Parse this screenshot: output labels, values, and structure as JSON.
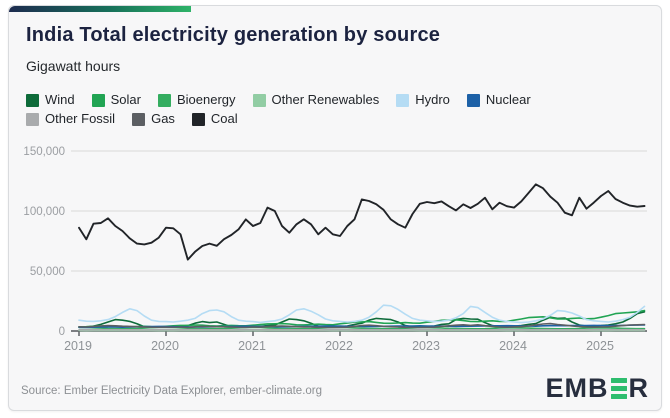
{
  "header": {
    "title": "India Total electricity generation by source",
    "subtitle": "Gigawatt hours"
  },
  "footer": {
    "source": "Source: Ember Electricity Data Explorer, ember-climate.org",
    "logo_left": "EMB",
    "logo_right": "R"
  },
  "colors": {
    "card_bg": "#f7f7f8",
    "accent_gradient_start": "#1d2b4f",
    "accent_gradient_end": "#2eb368",
    "grid": "#d8d8d8",
    "axis": "#53565a",
    "tick_text": "#9b9ea2",
    "year_text": "#8f9397",
    "title_text": "#1c2340",
    "logo_green": "#2ebd6e"
  },
  "chart_data": {
    "type": "line",
    "title": "India Total electricity generation by source",
    "ylabel": "Gigawatt hours",
    "x_interval": "monthly",
    "x_start": "2019-01",
    "x_end": "2025-07",
    "x_tick_labels": [
      "2019",
      "2020",
      "2021",
      "2022",
      "2023",
      "2024",
      "2025"
    ],
    "y_ticks": [
      0,
      50000,
      100000,
      150000
    ],
    "ylim": [
      0,
      160000
    ],
    "grid": true,
    "legend_position": "top",
    "series": [
      {
        "name": "Wind",
        "color": "#0e6b3a",
        "values": [
          3500,
          3200,
          4000,
          5500,
          7500,
          9500,
          9000,
          8000,
          6000,
          3500,
          3000,
          3200,
          3300,
          3500,
          4200,
          4500,
          6500,
          7800,
          7000,
          7500,
          5500,
          3500,
          3000,
          3100,
          3200,
          3800,
          4500,
          5000,
          7500,
          10000,
          9500,
          8500,
          6500,
          4000,
          3200,
          3300,
          3600,
          4200,
          5500,
          6500,
          9000,
          10500,
          10000,
          9500,
          7500,
          4500,
          3500,
          3600,
          3800,
          4200,
          5500,
          6000,
          9500,
          10500,
          10000,
          9800,
          7000,
          4500,
          3600,
          3800,
          4000,
          4500,
          5500,
          6200,
          9000,
          11500,
          10500,
          10800,
          7500,
          5000,
          4000,
          4200,
          4500,
          5000,
          6000,
          7500,
          10500,
          14500,
          16000
        ]
      },
      {
        "name": "Solar",
        "color": "#21a453",
        "values": [
          3300,
          3600,
          4000,
          4200,
          4300,
          4100,
          3600,
          3500,
          3700,
          3900,
          3600,
          3500,
          3900,
          4300,
          4700,
          4700,
          5000,
          4800,
          4300,
          4200,
          4400,
          4700,
          4400,
          4300,
          4800,
          5300,
          5900,
          6000,
          6200,
          5800,
          5200,
          5100,
          5400,
          5700,
          5300,
          5200,
          6000,
          6600,
          7400,
          7600,
          7800,
          7200,
          6500,
          6400,
          6700,
          7000,
          6600,
          6500,
          7300,
          8000,
          8900,
          9100,
          9300,
          8700,
          7900,
          7800,
          8200,
          8500,
          8000,
          8000,
          9000,
          10000,
          11200,
          11500,
          11800,
          11000,
          10000,
          10000,
          10500,
          10800,
          10200,
          10300,
          11500,
          12800,
          14500,
          15000,
          15500,
          16000,
          17000
        ]
      },
      {
        "name": "Bioenergy",
        "color": "#34ad60",
        "values": [
          3000,
          2900,
          2700,
          2400,
          2200,
          2100,
          2000,
          2000,
          2100,
          2400,
          2800,
          3100,
          3100,
          3000,
          2700,
          2300,
          2100,
          2000,
          1900,
          1900,
          2000,
          2300,
          2700,
          3000,
          3000,
          2900,
          2600,
          2300,
          2100,
          2000,
          1900,
          1900,
          2000,
          2300,
          2700,
          2900,
          2900,
          2800,
          2600,
          2300,
          2100,
          2000,
          1900,
          1900,
          2000,
          2300,
          2600,
          2800,
          2800,
          2700,
          2500,
          2200,
          2000,
          1900,
          1900,
          1800,
          1900,
          2200,
          2500,
          2700,
          2700,
          2600,
          2400,
          2200,
          2000,
          1900,
          1800,
          1800,
          1900,
          2100,
          2400,
          2600,
          2600,
          2500,
          2400,
          2200,
          2000,
          1900,
          1900
        ]
      },
      {
        "name": "Other Renewables",
        "color": "#92cda4",
        "values": [
          380,
          370,
          390,
          400,
          420,
          430,
          420,
          410,
          400,
          390,
          380,
          370,
          380,
          370,
          390,
          400,
          420,
          430,
          420,
          410,
          400,
          390,
          380,
          370,
          380,
          370,
          390,
          400,
          420,
          430,
          420,
          410,
          400,
          390,
          380,
          370,
          380,
          370,
          390,
          400,
          420,
          430,
          420,
          410,
          400,
          390,
          380,
          370,
          380,
          370,
          390,
          400,
          420,
          430,
          420,
          410,
          400,
          390,
          380,
          370,
          380,
          370,
          390,
          400,
          420,
          430,
          420,
          410,
          400,
          390,
          380,
          370,
          380,
          370,
          390,
          400,
          420,
          430,
          420
        ]
      },
      {
        "name": "Hydro",
        "color": "#b5dcf4",
        "values": [
          9000,
          8200,
          8000,
          8500,
          9500,
          12000,
          15500,
          18500,
          17000,
          12500,
          9000,
          8000,
          7800,
          7500,
          8200,
          9000,
          10500,
          14500,
          17000,
          17500,
          16000,
          12000,
          9000,
          8200,
          7800,
          7200,
          7800,
          8500,
          10000,
          13500,
          17500,
          18500,
          16500,
          13500,
          10000,
          8500,
          8000,
          7500,
          8000,
          9000,
          11500,
          16000,
          21500,
          21000,
          18000,
          14000,
          10500,
          9000,
          8500,
          7800,
          8200,
          9000,
          11000,
          14500,
          20500,
          19500,
          15500,
          11500,
          9000,
          8000,
          7500,
          7000,
          7500,
          8500,
          10000,
          13000,
          17000,
          16500,
          15000,
          12500,
          9500,
          8500,
          8000,
          7500,
          8200,
          9500,
          11500,
          15500,
          20500
        ]
      },
      {
        "name": "Nuclear",
        "color": "#1d61a7",
        "values": [
          3100,
          3000,
          3200,
          3300,
          3400,
          3300,
          3200,
          3400,
          3500,
          3600,
          3700,
          3800,
          3700,
          3600,
          3500,
          3400,
          3300,
          3400,
          3500,
          3600,
          3700,
          3800,
          3900,
          4000,
          3900,
          3700,
          3800,
          3600,
          3500,
          3600,
          3700,
          3800,
          3900,
          4000,
          4100,
          4200,
          4100,
          3900,
          4000,
          3800,
          3700,
          3800,
          3900,
          4000,
          4100,
          4200,
          4200,
          4300,
          4200,
          4000,
          4100,
          3900,
          3800,
          3900,
          4000,
          4100,
          4200,
          4300,
          4300,
          4400,
          4300,
          4100,
          4200,
          4000,
          4300,
          4400,
          4500,
          4400,
          4500,
          4600,
          4600,
          4700,
          4600,
          4400,
          4500,
          4700,
          4800,
          4900,
          5000
        ]
      },
      {
        "name": "Other Fossil",
        "color": "#a9abad",
        "values": [
          1000,
          980,
          1020,
          1050,
          1100,
          1080,
          1040,
          1000,
          970,
          950,
          960,
          980,
          1000,
          980,
          1020,
          1050,
          1100,
          1080,
          1040,
          1000,
          970,
          950,
          960,
          980,
          1000,
          980,
          1020,
          1050,
          1100,
          1080,
          1040,
          1000,
          970,
          950,
          960,
          980,
          1000,
          980,
          1020,
          1050,
          1100,
          1080,
          1040,
          1000,
          970,
          950,
          960,
          980,
          1000,
          980,
          1020,
          1050,
          1100,
          1080,
          1040,
          1000,
          970,
          950,
          960,
          980,
          1000,
          980,
          1020,
          1050,
          1100,
          1080,
          1040,
          1000,
          970,
          950,
          960,
          980,
          1000,
          980,
          1020,
          1050,
          1100,
          1080,
          1040
        ]
      },
      {
        "name": "Gas",
        "color": "#5c5f63",
        "values": [
          3500,
          3300,
          3800,
          4200,
          4500,
          4300,
          4000,
          3800,
          3600,
          3400,
          3200,
          3100,
          3200,
          3100,
          3300,
          3000,
          3500,
          3800,
          3700,
          3600,
          3500,
          3300,
          3100,
          3000,
          3300,
          3200,
          3600,
          4000,
          4200,
          3900,
          3600,
          3400,
          3300,
          3100,
          2900,
          2800,
          3000,
          3200,
          3800,
          4500,
          4800,
          4400,
          3900,
          3600,
          3400,
          3100,
          2900,
          2800,
          3000,
          3200,
          3800,
          4300,
          4800,
          5200,
          4700,
          5200,
          4400,
          3800,
          3300,
          3100,
          3400,
          3600,
          4200,
          5000,
          5800,
          6200,
          5400,
          4800,
          4200,
          3700,
          3300,
          3200,
          3300,
          3500,
          4000,
          4500,
          5000,
          5200,
          5400
        ]
      },
      {
        "name": "Coal",
        "color": "#212428",
        "values": [
          86000,
          76400,
          89400,
          90000,
          93900,
          87500,
          83300,
          77200,
          72800,
          72200,
          73600,
          77800,
          86100,
          85600,
          80600,
          59500,
          66000,
          70800,
          72800,
          71000,
          76500,
          80000,
          84700,
          93000,
          87500,
          90000,
          102800,
          100000,
          87500,
          81900,
          88900,
          93100,
          88900,
          80600,
          86100,
          80600,
          79200,
          87500,
          93100,
          109700,
          108300,
          105600,
          101000,
          93000,
          88900,
          86100,
          97500,
          106000,
          107500,
          106500,
          108000,
          104000,
          100500,
          105600,
          102500,
          106000,
          111100,
          101400,
          106900,
          104000,
          102800,
          108000,
          115000,
          122200,
          119000,
          112000,
          106900,
          98600,
          96400,
          111100,
          101900,
          107000,
          112500,
          116700,
          110000,
          106900,
          104500,
          103600,
          104200
        ]
      }
    ]
  }
}
